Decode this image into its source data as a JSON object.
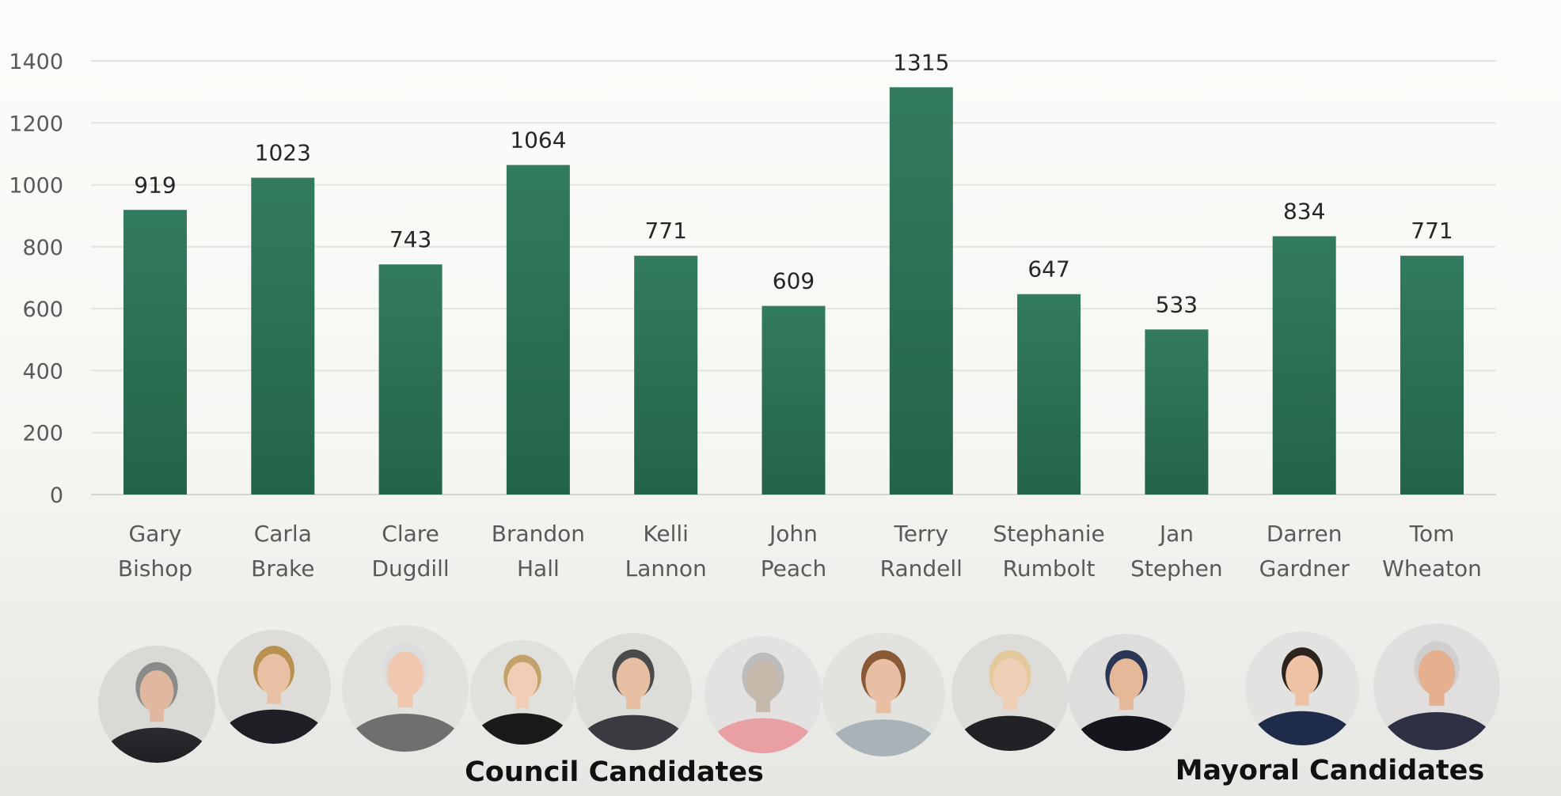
{
  "chart_data": {
    "type": "bar",
    "categories": [
      [
        "Gary",
        "Bishop"
      ],
      [
        "Carla",
        "Brake"
      ],
      [
        "Clare",
        "Dugdill"
      ],
      [
        "Brandon",
        "Hall"
      ],
      [
        "Kelli",
        "Lannon"
      ],
      [
        "John",
        "Peach"
      ],
      [
        "Terry",
        "Randell"
      ],
      [
        "Stephanie",
        "Rumbolt"
      ],
      [
        "Jan",
        "Stephen"
      ],
      [
        "Darren",
        "Gardner"
      ],
      [
        "Tom",
        "Wheaton"
      ]
    ],
    "values": [
      919,
      1023,
      743,
      1064,
      771,
      609,
      1315,
      647,
      533,
      834,
      771
    ],
    "ylim": [
      0,
      1400
    ],
    "yticks": [
      0,
      200,
      400,
      600,
      800,
      1000,
      1200,
      1400
    ],
    "title": "",
    "xlabel": "",
    "ylabel": "",
    "grid": true,
    "data_labels": true,
    "bar_color": "#2e7458"
  },
  "candidate_groups": [
    {
      "label": "Council Candidates",
      "members": [
        "Gary Bishop",
        "Carla Brake",
        "Clare Dugdill",
        "Brandon Hall",
        "Kelli Lannon",
        "John Peach",
        "Terry Randell",
        "Stephanie Rumbolt",
        "Jan Stephen"
      ]
    },
    {
      "label": "Mayoral Candidates",
      "members": [
        "Darren Gardner",
        "Tom Wheaton"
      ]
    }
  ]
}
